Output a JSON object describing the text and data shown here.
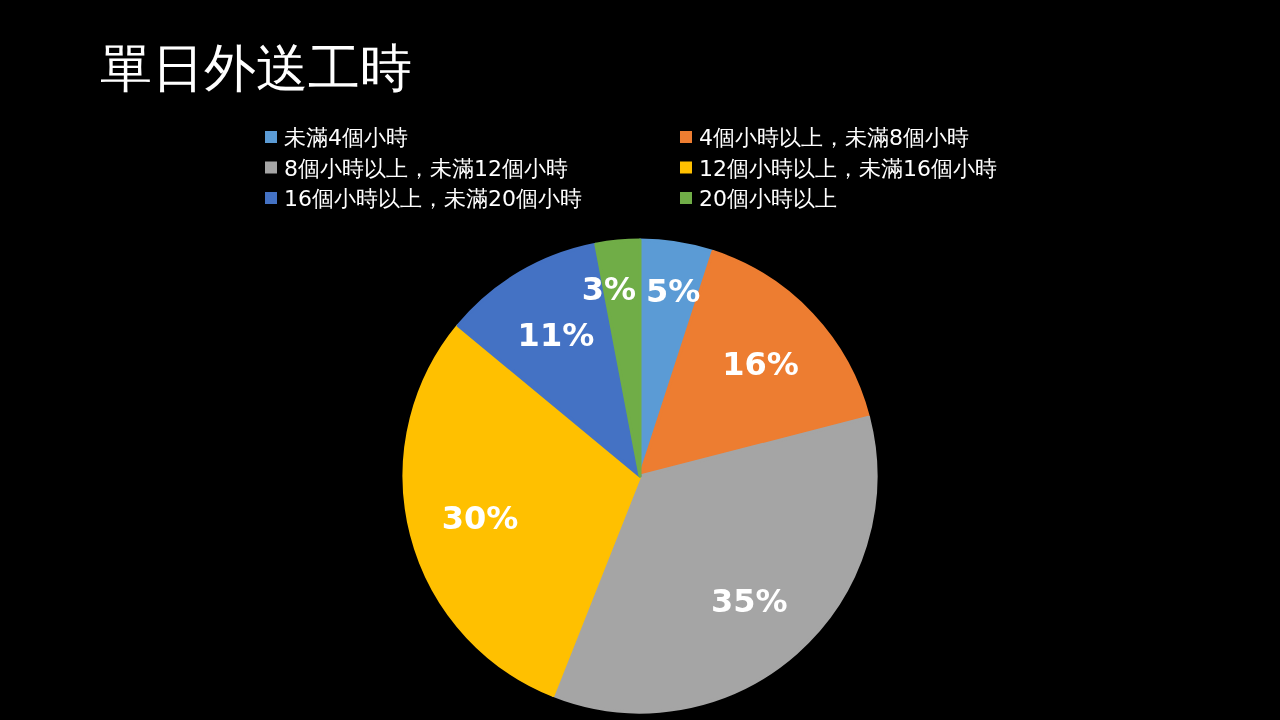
{
  "chart_data": {
    "type": "pie",
    "title": "單日外送工時",
    "categories": [
      "未滿4個小時",
      "4個小時以上，未滿8個小時",
      "8個小時以上，未滿12個小時",
      "12個小時以上，未滿16個小時",
      "16個小時以上，未滿20個小時",
      "20個小時以上"
    ],
    "values": [
      5,
      16,
      35,
      30,
      11,
      3
    ],
    "colors": [
      "#5b9bd5",
      "#ed7d31",
      "#a5a5a5",
      "#ffc000",
      "#4472c4",
      "#70ad47"
    ],
    "value_labels": [
      "5%",
      "16%",
      "35%",
      "30%",
      "11%",
      "3%"
    ],
    "legend": "top"
  }
}
